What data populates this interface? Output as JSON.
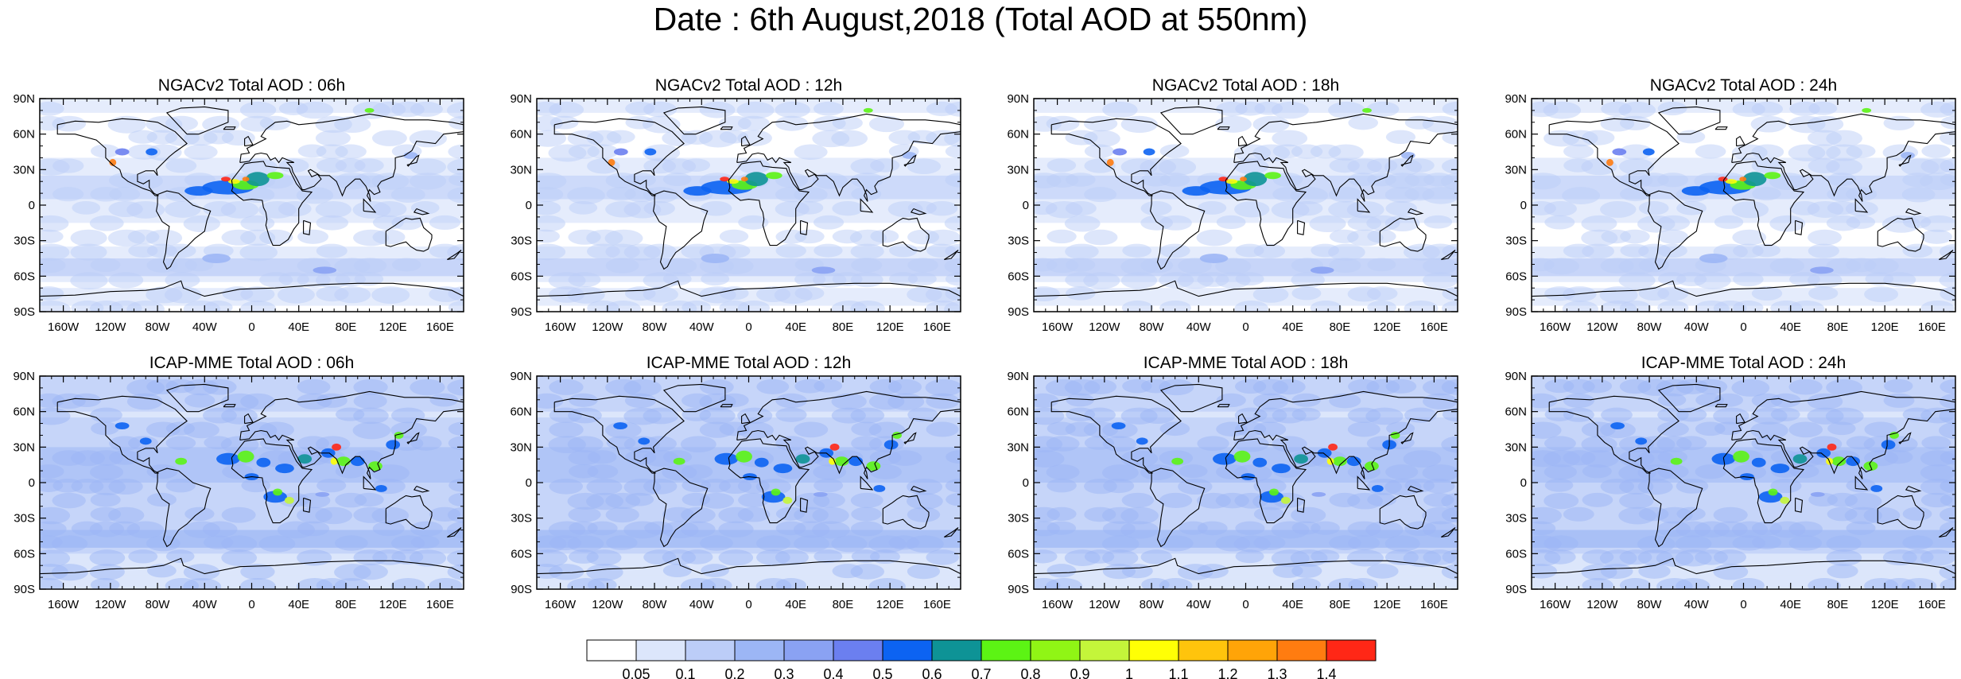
{
  "title": "Date : 6th August,2018 (Total AOD at 550nm)",
  "panels": [
    {
      "title": "NGACv2 Total AOD : 06h",
      "model": "NGACv2"
    },
    {
      "title": "NGACv2 Total AOD : 12h",
      "model": "NGACv2"
    },
    {
      "title": "NGACv2 Total AOD : 18h",
      "model": "NGACv2"
    },
    {
      "title": "NGACv2 Total AOD : 24h",
      "model": "NGACv2"
    },
    {
      "title": "ICAP-MME Total AOD : 06h",
      "model": "ICAP-MME"
    },
    {
      "title": "ICAP-MME Total AOD : 12h",
      "model": "ICAP-MME"
    },
    {
      "title": "ICAP-MME Total AOD : 18h",
      "model": "ICAP-MME"
    },
    {
      "title": "ICAP-MME Total AOD : 24h",
      "model": "ICAP-MME"
    }
  ],
  "axes": {
    "lat_ticks": [
      "90N",
      "60N",
      "30N",
      "0",
      "30S",
      "60S",
      "90S"
    ],
    "lat_values": [
      90,
      60,
      30,
      0,
      -30,
      -60,
      -90
    ],
    "lon_ticks": [
      "160W",
      "120W",
      "80W",
      "40W",
      "0",
      "40E",
      "80E",
      "120E",
      "160E"
    ],
    "lon_values": [
      -160,
      -120,
      -80,
      -40,
      0,
      40,
      80,
      120,
      160
    ],
    "lon_range": [
      -180,
      180
    ],
    "lat_range": [
      -90,
      90
    ]
  },
  "colorbar": {
    "labels": [
      "0.05",
      "0.1",
      "0.2",
      "0.3",
      "0.4",
      "0.5",
      "0.6",
      "0.7",
      "0.8",
      "0.9",
      "1",
      "1.1",
      "1.2",
      "1.3",
      "1.4"
    ],
    "colors": [
      "#ffffff",
      "#dce6fb",
      "#bccdf8",
      "#9cb6f5",
      "#8aa2f3",
      "#6b7ff0",
      "#0c63f2",
      "#0e9396",
      "#5cf414",
      "#90f515",
      "#c4f53a",
      "#ffff05",
      "#ffc40c",
      "#ffa408",
      "#ff7c10",
      "#ff2716"
    ]
  }
}
